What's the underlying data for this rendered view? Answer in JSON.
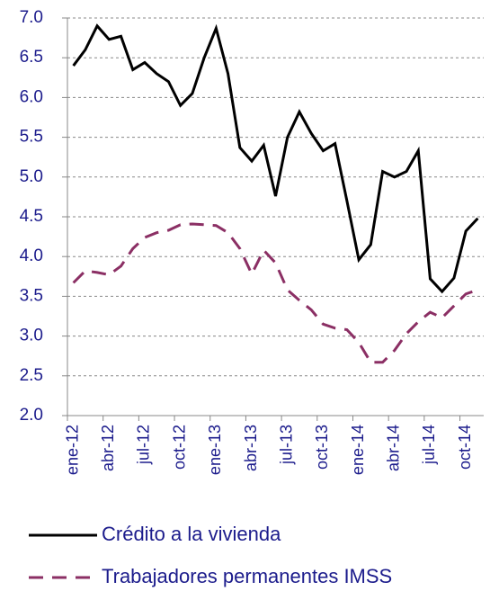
{
  "chart_data": {
    "type": "line",
    "categories": [
      "ene-12",
      null,
      null,
      "abr-12",
      null,
      null,
      "jul-12",
      null,
      null,
      "oct-12",
      null,
      null,
      "ene-13",
      null,
      null,
      "abr-13",
      null,
      null,
      "jul-13",
      null,
      null,
      "oct-13",
      null,
      null,
      "ene-14",
      null,
      null,
      "abr-14",
      null,
      null,
      "jul-14",
      null,
      null,
      "oct-14",
      null
    ],
    "series": [
      {
        "name": "Crédito a la vivienda",
        "color": "#000000",
        "dash": false,
        "values": [
          6.4,
          6.6,
          6.9,
          6.73,
          6.77,
          6.35,
          6.44,
          6.3,
          6.2,
          5.9,
          6.05,
          6.5,
          6.87,
          6.3,
          5.37,
          5.2,
          5.4,
          4.76,
          5.5,
          5.82,
          5.55,
          5.33,
          5.42,
          4.7,
          3.96,
          4.15,
          5.07,
          5.0,
          5.07,
          5.33,
          3.72,
          3.56,
          3.73,
          4.32,
          4.48
        ]
      },
      {
        "name": "Trabajadores permanentes IMSS",
        "color": "#8b2f64",
        "dash": true,
        "values": [
          3.67,
          3.82,
          3.8,
          3.77,
          3.88,
          4.1,
          4.24,
          4.3,
          4.33,
          4.4,
          4.41,
          4.4,
          4.39,
          4.3,
          4.1,
          3.78,
          4.08,
          3.92,
          3.58,
          3.45,
          3.33,
          3.15,
          3.1,
          3.08,
          2.92,
          2.67,
          2.67,
          2.82,
          3.03,
          3.18,
          3.3,
          3.23,
          3.38,
          3.53,
          3.58
        ]
      }
    ],
    "ylim": [
      2.0,
      7.0
    ],
    "yticks": [
      {
        "value": 2.0,
        "label": "2.0"
      },
      {
        "value": 2.5,
        "label": "2.5"
      },
      {
        "value": 3.0,
        "label": "3.0"
      },
      {
        "value": 3.5,
        "label": "3.5"
      },
      {
        "value": 4.0,
        "label": "4.0"
      },
      {
        "value": 4.5,
        "label": "4.5"
      },
      {
        "value": 5.0,
        "label": "5.0"
      },
      {
        "value": 5.5,
        "label": "5.5"
      },
      {
        "value": 6.0,
        "label": "6.0"
      },
      {
        "value": 6.5,
        "label": "6.5"
      },
      {
        "value": 7.0,
        "label": "7.0"
      }
    ],
    "grid": true,
    "legend": "bottom"
  }
}
